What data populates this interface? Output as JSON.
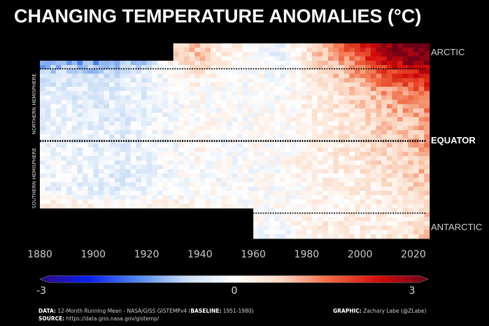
{
  "chart_data": {
    "type": "heatmap",
    "title": "CHANGING TEMPERATURE ANOMALIES (°C)",
    "x_ticks": [
      1880,
      1900,
      1920,
      1940,
      1960,
      1980,
      2000,
      2020
    ],
    "xlim": [
      1880,
      2025
    ],
    "ylim": [
      -90,
      90
    ],
    "zone_labels": {
      "arctic": "ARCTIC",
      "equator": "EQUATOR",
      "antarctic": "ANTARCTIC"
    },
    "hemisphere_labels": {
      "north": "NORTHERN HEMISPHERE",
      "south": "SOUTHERN HEMISPHERE"
    },
    "reference_lines": [
      66.5,
      0,
      -66.5
    ],
    "colorbar": {
      "min": -3,
      "max": 3,
      "ticks": [
        "-3",
        "0",
        "3"
      ],
      "colors": [
        "#2a0a7a",
        "#0a1ef0",
        "#4f86ee",
        "#c9ddf6",
        "#ffffff",
        "#fbd6c0",
        "#f0643c",
        "#d20a0a",
        "#6b0018"
      ]
    },
    "years": [
      1880,
      1890,
      1900,
      1910,
      1920,
      1930,
      1940,
      1950,
      1960,
      1970,
      1980,
      1990,
      2000,
      2010,
      2020,
      2025
    ],
    "latitudes": [
      90,
      75,
      60,
      45,
      30,
      15,
      0,
      -15,
      -30,
      -45,
      -60,
      -75,
      -90
    ],
    "values": [
      [
        null,
        null,
        null,
        null,
        null,
        0.8,
        0.9,
        0.3,
        0.0,
        -0.2,
        0.6,
        1.2,
        2.0,
        2.8,
        3.0,
        3.0
      ],
      [
        -1.5,
        -1.3,
        -1.4,
        -1.2,
        -0.9,
        0.4,
        0.8,
        0.2,
        0.0,
        -0.3,
        0.4,
        1.0,
        1.6,
        2.4,
        2.8,
        2.9
      ],
      [
        -0.6,
        -0.5,
        -0.6,
        -0.5,
        -0.3,
        0.1,
        0.3,
        0.0,
        0.0,
        -0.1,
        0.3,
        0.7,
        1.1,
        1.6,
        2.0,
        2.2
      ],
      [
        -0.4,
        -0.4,
        -0.5,
        -0.4,
        -0.3,
        -0.1,
        0.1,
        0.0,
        0.0,
        -0.1,
        0.2,
        0.5,
        0.8,
        1.1,
        1.4,
        1.6
      ],
      [
        -0.3,
        -0.3,
        -0.4,
        -0.4,
        -0.3,
        -0.1,
        0.0,
        0.0,
        0.0,
        0.0,
        0.2,
        0.4,
        0.6,
        0.9,
        1.1,
        1.3
      ],
      [
        -0.3,
        -0.2,
        -0.4,
        -0.4,
        -0.2,
        -0.1,
        0.1,
        -0.1,
        0.0,
        0.0,
        0.2,
        0.4,
        0.5,
        0.7,
        0.9,
        1.1
      ],
      [
        -0.2,
        -0.2,
        -0.3,
        -0.4,
        -0.2,
        -0.1,
        0.1,
        -0.1,
        0.0,
        0.0,
        0.2,
        0.4,
        0.5,
        0.7,
        0.9,
        1.2
      ],
      [
        -0.2,
        -0.2,
        -0.3,
        -0.4,
        -0.2,
        -0.1,
        0.1,
        -0.1,
        0.0,
        0.0,
        0.2,
        0.3,
        0.4,
        0.6,
        0.8,
        1.0
      ],
      [
        -0.2,
        -0.2,
        -0.3,
        -0.4,
        -0.3,
        -0.1,
        0.0,
        -0.1,
        0.0,
        0.0,
        0.2,
        0.3,
        0.4,
        0.5,
        0.7,
        0.9
      ],
      [
        -0.2,
        -0.3,
        -0.3,
        -0.4,
        -0.3,
        -0.2,
        0.0,
        -0.1,
        0.0,
        0.0,
        0.1,
        0.2,
        0.3,
        0.4,
        0.6,
        0.8
      ],
      [
        0.3,
        0.3,
        0.2,
        0.2,
        0.3,
        0.3,
        0.3,
        0.1,
        0.0,
        0.0,
        0.1,
        0.2,
        0.2,
        0.3,
        0.4,
        0.6
      ],
      [
        null,
        null,
        null,
        null,
        null,
        null,
        null,
        null,
        0.0,
        -0.1,
        0.2,
        0.3,
        0.3,
        0.3,
        0.5,
        0.7
      ],
      [
        null,
        null,
        null,
        null,
        null,
        null,
        null,
        null,
        0.0,
        -0.2,
        0.1,
        0.3,
        0.2,
        0.4,
        0.5,
        0.8
      ]
    ]
  },
  "footer": {
    "data_label": "DATA:",
    "data_text": "12-Month Running Mean - NASA/GISS GISTEMPv4 (",
    "baseline_label": "BASELINE:",
    "baseline_text": " 1951-1980)",
    "source_label": "SOURCE:",
    "source_text": " https://data.giss.nasa.gov/gistemp/",
    "graphic_label": "GRAPHIC:",
    "graphic_text": " Zachary Labe (@ZLabe)"
  }
}
